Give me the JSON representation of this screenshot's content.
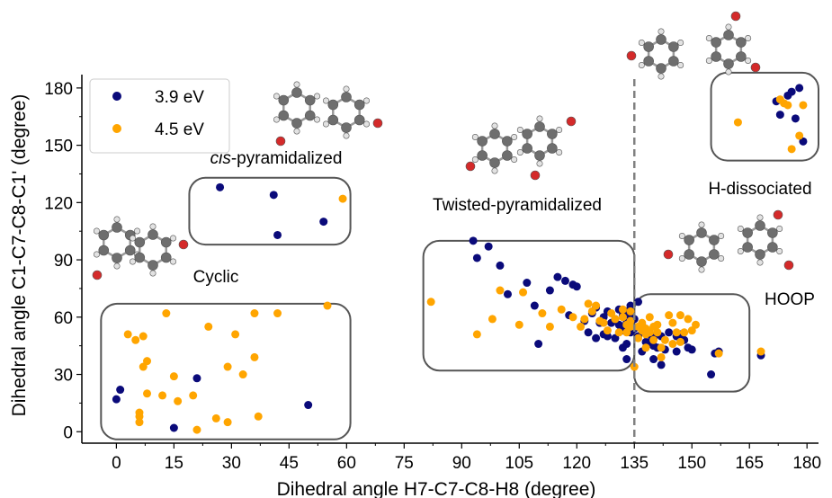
{
  "chart_data": {
    "type": "scatter",
    "title": "",
    "xlabel": "Dihedral angle H7-C7-C8-H8 (degree)",
    "ylabel": "Dihedral angle C1-C7-C8-C1' (degree)",
    "xlim": [
      -9,
      183
    ],
    "ylim": [
      -6,
      187
    ],
    "xticks": [
      "0",
      "15",
      "30",
      "45",
      "60",
      "75",
      "90",
      "105",
      "120",
      "135",
      "150",
      "165",
      "180"
    ],
    "yticks": [
      "0",
      "30",
      "60",
      "90",
      "120",
      "150",
      "180"
    ],
    "grid": false,
    "legend_position": "top-left",
    "vline": {
      "x": 135,
      "style": "dashed",
      "color": "#808080"
    },
    "colors": {
      "s1": "#0a0a7a",
      "s2": "#ffa500",
      "box": "#555555",
      "dash": "#808080"
    },
    "series": [
      {
        "name": "3.9 eV",
        "color": "#0a0a7a",
        "points": [
          [
            0,
            17
          ],
          [
            1,
            22
          ],
          [
            15,
            2
          ],
          [
            21,
            28
          ],
          [
            50,
            14
          ],
          [
            27,
            128
          ],
          [
            41,
            124
          ],
          [
            42,
            103
          ],
          [
            54,
            110
          ],
          [
            93,
            100
          ],
          [
            94,
            91
          ],
          [
            97,
            97
          ],
          [
            100,
            87
          ],
          [
            102,
            72
          ],
          [
            107,
            78
          ],
          [
            109,
            66
          ],
          [
            110,
            46
          ],
          [
            113,
            74
          ],
          [
            115,
            81
          ],
          [
            117,
            79
          ],
          [
            118,
            61
          ],
          [
            119,
            77
          ],
          [
            120,
            76
          ],
          [
            122,
            58
          ],
          [
            123,
            52
          ],
          [
            124,
            62
          ],
          [
            125,
            49
          ],
          [
            125,
            65
          ],
          [
            126,
            57
          ],
          [
            127,
            51
          ],
          [
            127,
            60
          ],
          [
            128,
            50
          ],
          [
            128,
            63
          ],
          [
            129,
            57
          ],
          [
            130,
            59
          ],
          [
            130,
            49
          ],
          [
            131,
            64
          ],
          [
            131,
            56
          ],
          [
            132,
            61
          ],
          [
            132,
            53
          ],
          [
            132,
            44
          ],
          [
            133,
            46
          ],
          [
            133,
            38
          ],
          [
            133,
            63
          ],
          [
            133,
            57
          ],
          [
            134,
            66
          ],
          [
            134,
            60
          ],
          [
            134,
            52
          ],
          [
            135,
            59
          ],
          [
            135,
            54
          ],
          [
            136,
            68
          ],
          [
            136,
            50
          ],
          [
            137,
            56
          ],
          [
            137,
            42
          ],
          [
            138,
            47
          ],
          [
            138,
            53
          ],
          [
            139,
            47
          ],
          [
            139,
            51
          ],
          [
            140,
            49
          ],
          [
            140,
            45
          ],
          [
            140,
            38
          ],
          [
            141,
            44
          ],
          [
            142,
            50
          ],
          [
            142,
            35
          ],
          [
            143,
            43
          ],
          [
            144,
            52
          ],
          [
            146,
            50
          ],
          [
            146,
            42
          ],
          [
            147,
            51
          ],
          [
            148,
            48
          ],
          [
            149,
            44
          ],
          [
            150,
            43
          ],
          [
            155,
            30
          ],
          [
            156,
            41
          ],
          [
            157,
            42
          ],
          [
            168,
            40
          ],
          [
            172,
            173
          ],
          [
            173,
            166
          ],
          [
            175,
            176
          ],
          [
            176,
            178
          ],
          [
            177,
            164
          ],
          [
            178,
            180
          ],
          [
            179,
            152
          ]
        ]
      },
      {
        "name": "4.5 eV",
        "color": "#ffa500",
        "points": [
          [
            3,
            51
          ],
          [
            5,
            48
          ],
          [
            6,
            8
          ],
          [
            6,
            10
          ],
          [
            6,
            5
          ],
          [
            7,
            34
          ],
          [
            7,
            50
          ],
          [
            8,
            20
          ],
          [
            8,
            37
          ],
          [
            12,
            19
          ],
          [
            13,
            62
          ],
          [
            15,
            29
          ],
          [
            16,
            16
          ],
          [
            20,
            19
          ],
          [
            21,
            1
          ],
          [
            24,
            55
          ],
          [
            26,
            7
          ],
          [
            29,
            34
          ],
          [
            29,
            5
          ],
          [
            31,
            51
          ],
          [
            33,
            30
          ],
          [
            36,
            62
          ],
          [
            36,
            39
          ],
          [
            37,
            8
          ],
          [
            42,
            62
          ],
          [
            55,
            66
          ],
          [
            59,
            122
          ],
          [
            82,
            68
          ],
          [
            94,
            51
          ],
          [
            98,
            59
          ],
          [
            100,
            74
          ],
          [
            105,
            56
          ],
          [
            106,
            73
          ],
          [
            111,
            62
          ],
          [
            113,
            55
          ],
          [
            116,
            64
          ],
          [
            119,
            60
          ],
          [
            121,
            55
          ],
          [
            122,
            59
          ],
          [
            123,
            67
          ],
          [
            124,
            63
          ],
          [
            125,
            66
          ],
          [
            126,
            58
          ],
          [
            127,
            57
          ],
          [
            128,
            53
          ],
          [
            129,
            62
          ],
          [
            130,
            59
          ],
          [
            131,
            52
          ],
          [
            132,
            64
          ],
          [
            132,
            60
          ],
          [
            133,
            56
          ],
          [
            133,
            52
          ],
          [
            134,
            63
          ],
          [
            134,
            58
          ],
          [
            134,
            55
          ],
          [
            135,
            34
          ],
          [
            136,
            49
          ],
          [
            136,
            55
          ],
          [
            137,
            57
          ],
          [
            137,
            53
          ],
          [
            138,
            54
          ],
          [
            138,
            51
          ],
          [
            138,
            44
          ],
          [
            139,
            60
          ],
          [
            139,
            52
          ],
          [
            140,
            55
          ],
          [
            140,
            48
          ],
          [
            141,
            56
          ],
          [
            141,
            52
          ],
          [
            142,
            44
          ],
          [
            142,
            39
          ],
          [
            143,
            48
          ],
          [
            144,
            61
          ],
          [
            145,
            46
          ],
          [
            145,
            57
          ],
          [
            146,
            52
          ],
          [
            147,
            61
          ],
          [
            147,
            47
          ],
          [
            148,
            52
          ],
          [
            149,
            59
          ],
          [
            150,
            53
          ],
          [
            151,
            56
          ],
          [
            157,
            41
          ],
          [
            168,
            42
          ],
          [
            162,
            162
          ],
          [
            173,
            174
          ],
          [
            174,
            172
          ],
          [
            175,
            171
          ],
          [
            176,
            148
          ],
          [
            178,
            155
          ],
          [
            179,
            171
          ]
        ]
      }
    ],
    "regions": [
      {
        "label": "Cyclic",
        "x": [
          -4,
          61
        ],
        "y": [
          -4,
          67
        ]
      },
      {
        "label": "cis-pyramidalized",
        "x": [
          19,
          61
        ],
        "y": [
          98,
          133
        ]
      },
      {
        "label": "Twisted-pyramidalized",
        "x": [
          80,
          135
        ],
        "y": [
          32,
          100
        ]
      },
      {
        "label": "HOOP",
        "x": [
          135,
          165
        ],
        "y": [
          21,
          72
        ]
      },
      {
        "label": "H-dissociated",
        "x": [
          155,
          183
        ],
        "y": [
          142,
          188
        ]
      }
    ],
    "annotations": {
      "cyclic": "Cyclic",
      "cis_prefix": "cis",
      "cis_suffix": "-pyramidalized",
      "twisted": "Twisted-pyramidalized",
      "hoop": "HOOP",
      "hdiss": "H-dissociated"
    }
  }
}
